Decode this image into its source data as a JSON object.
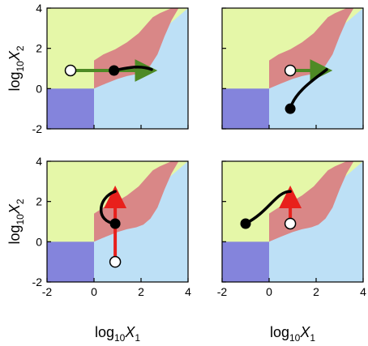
{
  "chart_data": [
    {
      "type": "phase-diagram",
      "panel": "top-left",
      "xlim": [
        -2,
        4
      ],
      "ylim": [
        -2,
        4
      ],
      "trajectory": [
        [
          0.85,
          0.9
        ],
        [
          1.3,
          1.0
        ],
        [
          1.9,
          1.2
        ],
        [
          2.45,
          0.95
        ]
      ],
      "open_point": [
        -1,
        0.9
      ],
      "filled_point": [
        0.85,
        0.9
      ],
      "arrow": {
        "color": "green",
        "from": [
          -1,
          0.9
        ],
        "to": [
          2.45,
          0.9
        ]
      }
    },
    {
      "type": "phase-diagram",
      "panel": "top-right",
      "xlim": [
        -2,
        4
      ],
      "ylim": [
        -2,
        4
      ],
      "trajectory": [
        [
          0.9,
          -1.0
        ],
        [
          1.1,
          -0.1
        ],
        [
          2.1,
          0.6
        ],
        [
          2.45,
          0.95
        ]
      ],
      "open_point": [
        0.9,
        0.9
      ],
      "filled_point": [
        0.9,
        -1.0
      ],
      "arrow": {
        "color": "green",
        "from": [
          0.9,
          0.9
        ],
        "to": [
          2.45,
          0.9
        ]
      }
    },
    {
      "type": "phase-diagram",
      "panel": "bottom-left",
      "xlim": [
        -2,
        4
      ],
      "ylim": [
        -2,
        4
      ],
      "trajectory": [
        [
          0.9,
          0.9
        ],
        [
          0.05,
          1.0
        ],
        [
          0.15,
          2.2
        ],
        [
          0.9,
          2.5
        ]
      ],
      "open_point": [
        0.9,
        -1.0
      ],
      "filled_point": [
        0.9,
        0.9
      ],
      "arrow": {
        "color": "red",
        "from": [
          0.9,
          -1.0
        ],
        "to": [
          0.9,
          2.5
        ]
      }
    },
    {
      "type": "phase-diagram",
      "panel": "bottom-right",
      "xlim": [
        -2,
        4
      ],
      "ylim": [
        -2,
        4
      ],
      "trajectory": [
        [
          -1.0,
          0.9
        ],
        [
          0.0,
          1.5
        ],
        [
          0.3,
          2.5
        ],
        [
          0.9,
          2.5
        ]
      ],
      "open_point": [
        0.9,
        0.9
      ],
      "filled_point": [
        -1.0,
        0.9
      ],
      "arrow": {
        "color": "red",
        "from": [
          0.9,
          0.9
        ],
        "to": [
          0.9,
          2.5
        ]
      }
    }
  ],
  "axes": {
    "x_ticks": [
      "-2",
      "0",
      "2",
      "4"
    ],
    "y_ticks": [
      "-2",
      "0",
      "2",
      "4"
    ],
    "x_ticks_values": [
      -2,
      0,
      2,
      4
    ],
    "y_ticks_values": [
      -2,
      0,
      2,
      4
    ],
    "xlabel_base": "log",
    "xlabel_sub": "10",
    "xlabel_var": "X",
    "xlabel_varsub": "1",
    "ylabel_base": "log",
    "ylabel_sub": "10",
    "ylabel_var": "X",
    "ylabel_varsub": "2"
  },
  "colors": {
    "green_region": "#e5f7a8",
    "blue_region": "#bde0f6",
    "purple_region": "#8484dc",
    "red_region": "#d98787",
    "green_arrow": "#4e8a25",
    "red_arrow": "#e8201c",
    "trajectory": "#000000"
  }
}
